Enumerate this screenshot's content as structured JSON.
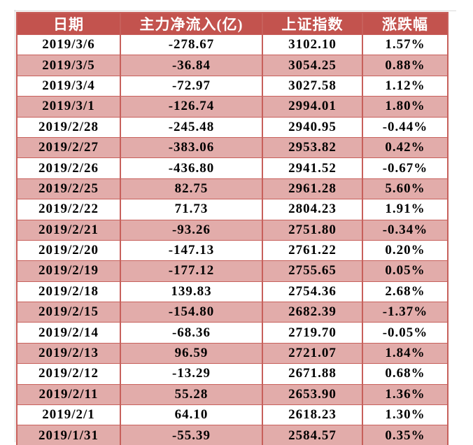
{
  "colors": {
    "header_bg": "#c3534e",
    "header_text": "#ffffff",
    "row_bg": "#ffffff",
    "row_alt_bg": "#e2acaa",
    "border": "#c7605b",
    "gridline": "#d9d9d9",
    "text": "#000000"
  },
  "chart_data": {
    "type": "table",
    "title": "",
    "columns": [
      "日期",
      "主力净流入(亿)",
      "上证指数",
      "涨跌幅"
    ],
    "rows": [
      [
        "2019/3/6",
        "-278.67",
        "3102.10",
        "1.57%"
      ],
      [
        "2019/3/5",
        "-36.84",
        "3054.25",
        "0.88%"
      ],
      [
        "2019/3/4",
        "-72.97",
        "3027.58",
        "1.12%"
      ],
      [
        "2019/3/1",
        "-126.74",
        "2994.01",
        "1.80%"
      ],
      [
        "2019/2/28",
        "-245.48",
        "2940.95",
        "-0.44%"
      ],
      [
        "2019/2/27",
        "-383.06",
        "2953.82",
        "0.42%"
      ],
      [
        "2019/2/26",
        "-436.80",
        "2941.52",
        "-0.67%"
      ],
      [
        "2019/2/25",
        "82.75",
        "2961.28",
        "5.60%"
      ],
      [
        "2019/2/22",
        "71.73",
        "2804.23",
        "1.91%"
      ],
      [
        "2019/2/21",
        "-93.26",
        "2751.80",
        "-0.34%"
      ],
      [
        "2019/2/20",
        "-147.13",
        "2761.22",
        "0.20%"
      ],
      [
        "2019/2/19",
        "-177.12",
        "2755.65",
        "0.05%"
      ],
      [
        "2019/2/18",
        "139.83",
        "2754.36",
        "2.68%"
      ],
      [
        "2019/2/15",
        "-154.80",
        "2682.39",
        "-1.37%"
      ],
      [
        "2019/2/14",
        "-68.36",
        "2719.70",
        "-0.05%"
      ],
      [
        "2019/2/13",
        "96.59",
        "2721.07",
        "1.84%"
      ],
      [
        "2019/2/12",
        "-13.29",
        "2671.88",
        "0.68%"
      ],
      [
        "2019/2/11",
        "55.28",
        "2653.90",
        "1.36%"
      ],
      [
        "2019/2/1",
        "64.10",
        "2618.23",
        "1.30%"
      ],
      [
        "2019/1/31",
        "-55.39",
        "2584.57",
        "0.35%"
      ]
    ]
  }
}
